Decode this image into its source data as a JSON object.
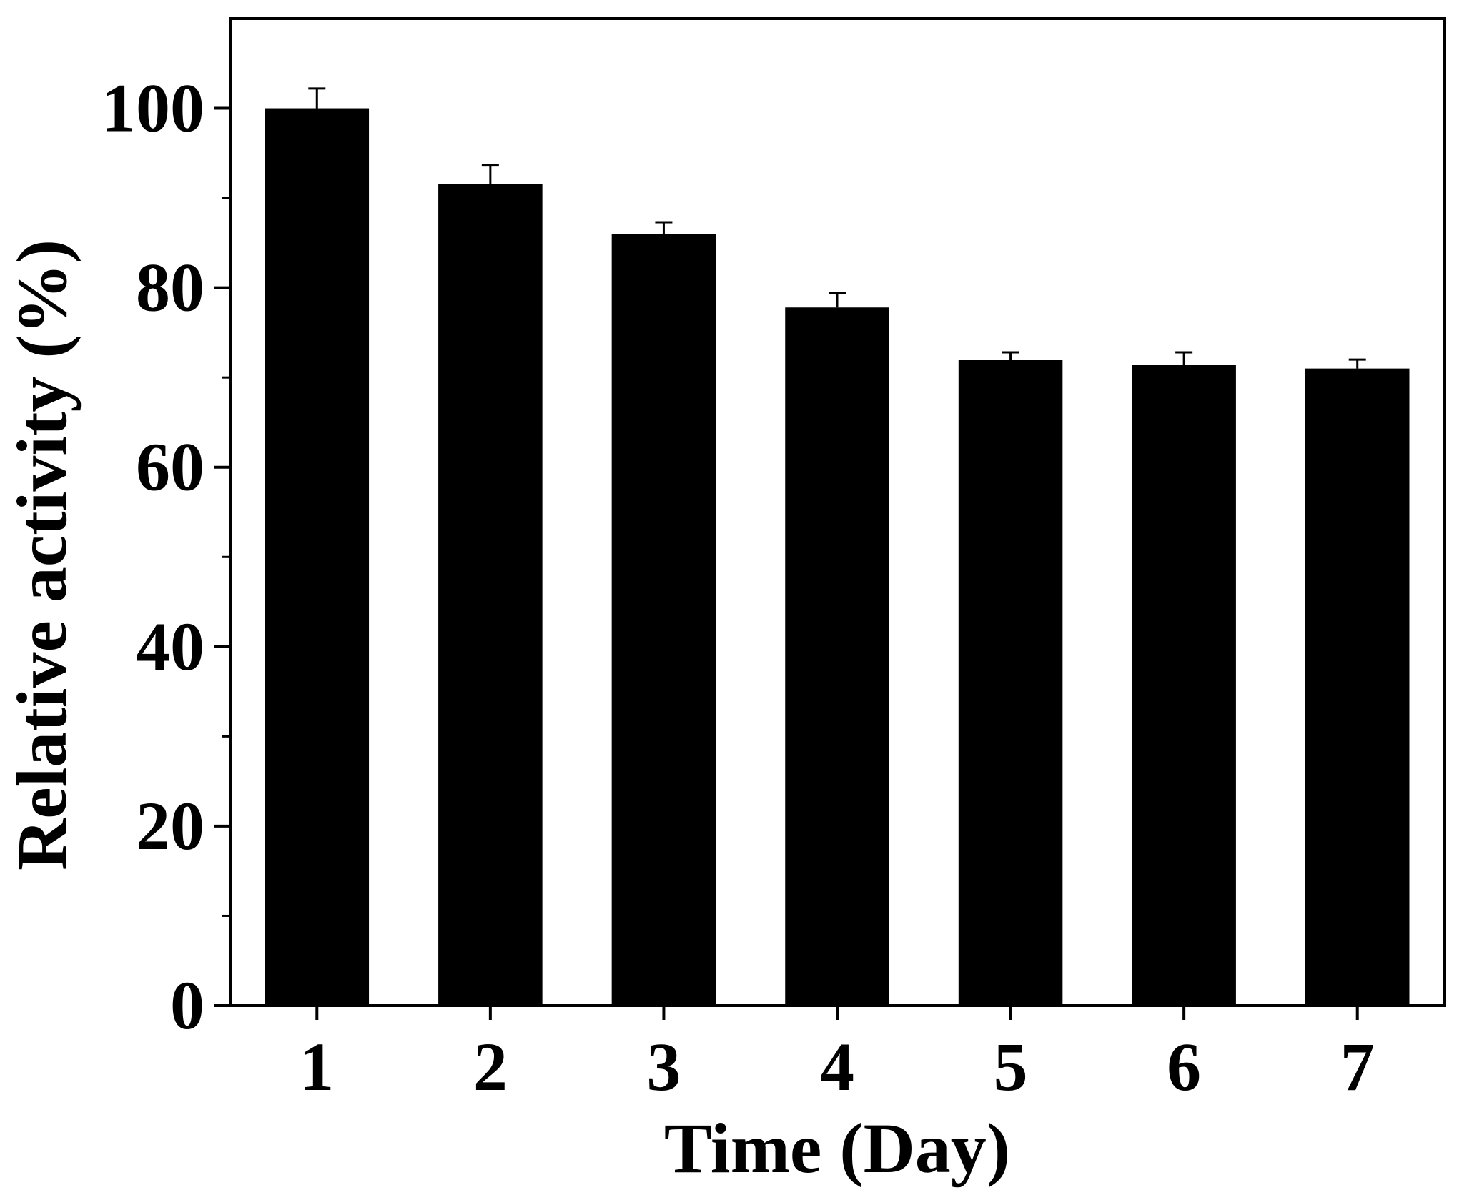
{
  "chart_data": {
    "type": "bar",
    "title": "",
    "xlabel": "Time (Day)",
    "ylabel": "Relative activity (%)",
    "categories": [
      "1",
      "2",
      "3",
      "4",
      "5",
      "6",
      "7"
    ],
    "values": [
      100,
      91.6,
      86.0,
      77.8,
      72.0,
      71.4,
      71.0
    ],
    "error_bars": [
      2.2,
      2.1,
      1.3,
      1.6,
      0.8,
      1.4,
      1.0
    ],
    "ylim": [
      0,
      110
    ],
    "yticks": [
      0,
      20,
      40,
      60,
      80,
      100
    ],
    "yticks_minor": [
      10,
      30,
      50,
      70,
      90
    ],
    "ytick_labels": [
      "0",
      "20",
      "40",
      "60",
      "80",
      "100"
    ],
    "grid": false,
    "legend": "none",
    "colors": {
      "bar": "#000000",
      "axis": "#000000",
      "background": "#ffffff"
    }
  }
}
